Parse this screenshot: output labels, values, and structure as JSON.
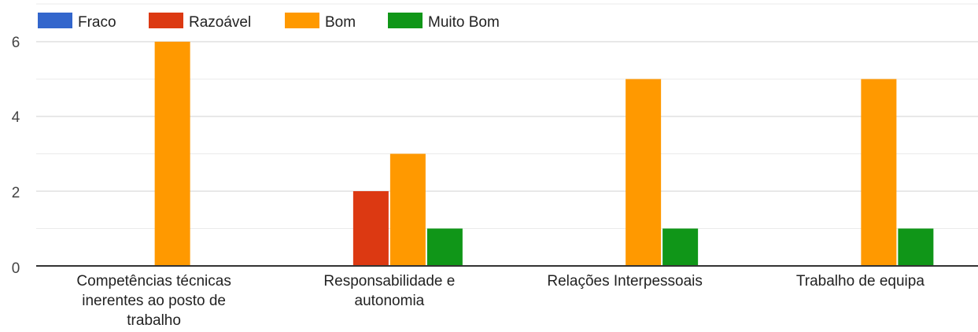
{
  "chart_data": {
    "type": "bar",
    "categories": [
      [
        "Competências técnicas",
        "inerentes ao posto de",
        "trabalho"
      ],
      [
        "Responsabilidade e",
        "autonomia"
      ],
      [
        "Relações Interpessoais"
      ],
      [
        "Trabalho de equipa"
      ]
    ],
    "series": [
      {
        "name": "Fraco",
        "color": "#3366cc",
        "values": [
          0,
          0,
          0,
          0
        ]
      },
      {
        "name": "Razoável",
        "color": "#dc3912",
        "values": [
          0,
          2,
          0,
          0
        ]
      },
      {
        "name": "Bom",
        "color": "#ff9900",
        "values": [
          6,
          3,
          5,
          5
        ]
      },
      {
        "name": "Muito Bom",
        "color": "#109618",
        "values": [
          0,
          1,
          1,
          1
        ]
      }
    ],
    "y_ticks": [
      "0",
      "2",
      "4",
      "6"
    ],
    "ylim": [
      0,
      6
    ],
    "grid": true,
    "legend_position": "top-left"
  }
}
